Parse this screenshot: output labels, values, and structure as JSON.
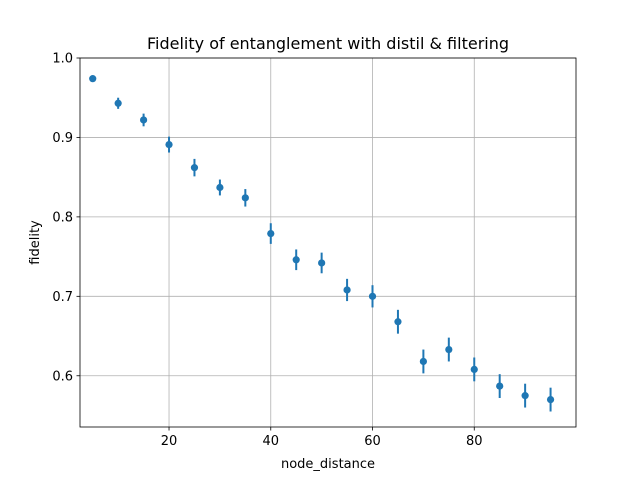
{
  "chart_data": {
    "type": "scatter",
    "title": "Fidelity of entanglement with distil & filtering",
    "xlabel": "node_distance",
    "ylabel": "fidelity",
    "xlim": [
      2.5,
      100
    ],
    "ylim": [
      0.5355,
      1.0
    ],
    "xticks": [
      20,
      40,
      60,
      80
    ],
    "yticks": [
      0.6,
      0.7,
      0.8,
      0.9,
      1.0
    ],
    "xtick_labels": [
      "20",
      "40",
      "60",
      "80"
    ],
    "ytick_labels": [
      "0.6",
      "0.7",
      "0.8",
      "0.9",
      "1.0"
    ],
    "grid": true,
    "marker_color": "#1f77b4",
    "series": [
      {
        "x": [
          5,
          10,
          15,
          20,
          25,
          30,
          35,
          40,
          45,
          50,
          55,
          60,
          65,
          70,
          75,
          80,
          85,
          90,
          95
        ],
        "y": [
          0.974,
          0.943,
          0.922,
          0.891,
          0.862,
          0.837,
          0.824,
          0.779,
          0.746,
          0.742,
          0.708,
          0.7,
          0.668,
          0.618,
          0.633,
          0.608,
          0.587,
          0.575,
          0.57
        ],
        "err": [
          0.004,
          0.007,
          0.008,
          0.01,
          0.011,
          0.01,
          0.011,
          0.013,
          0.013,
          0.013,
          0.014,
          0.014,
          0.015,
          0.015,
          0.015,
          0.015,
          0.015,
          0.015,
          0.015
        ]
      }
    ]
  }
}
